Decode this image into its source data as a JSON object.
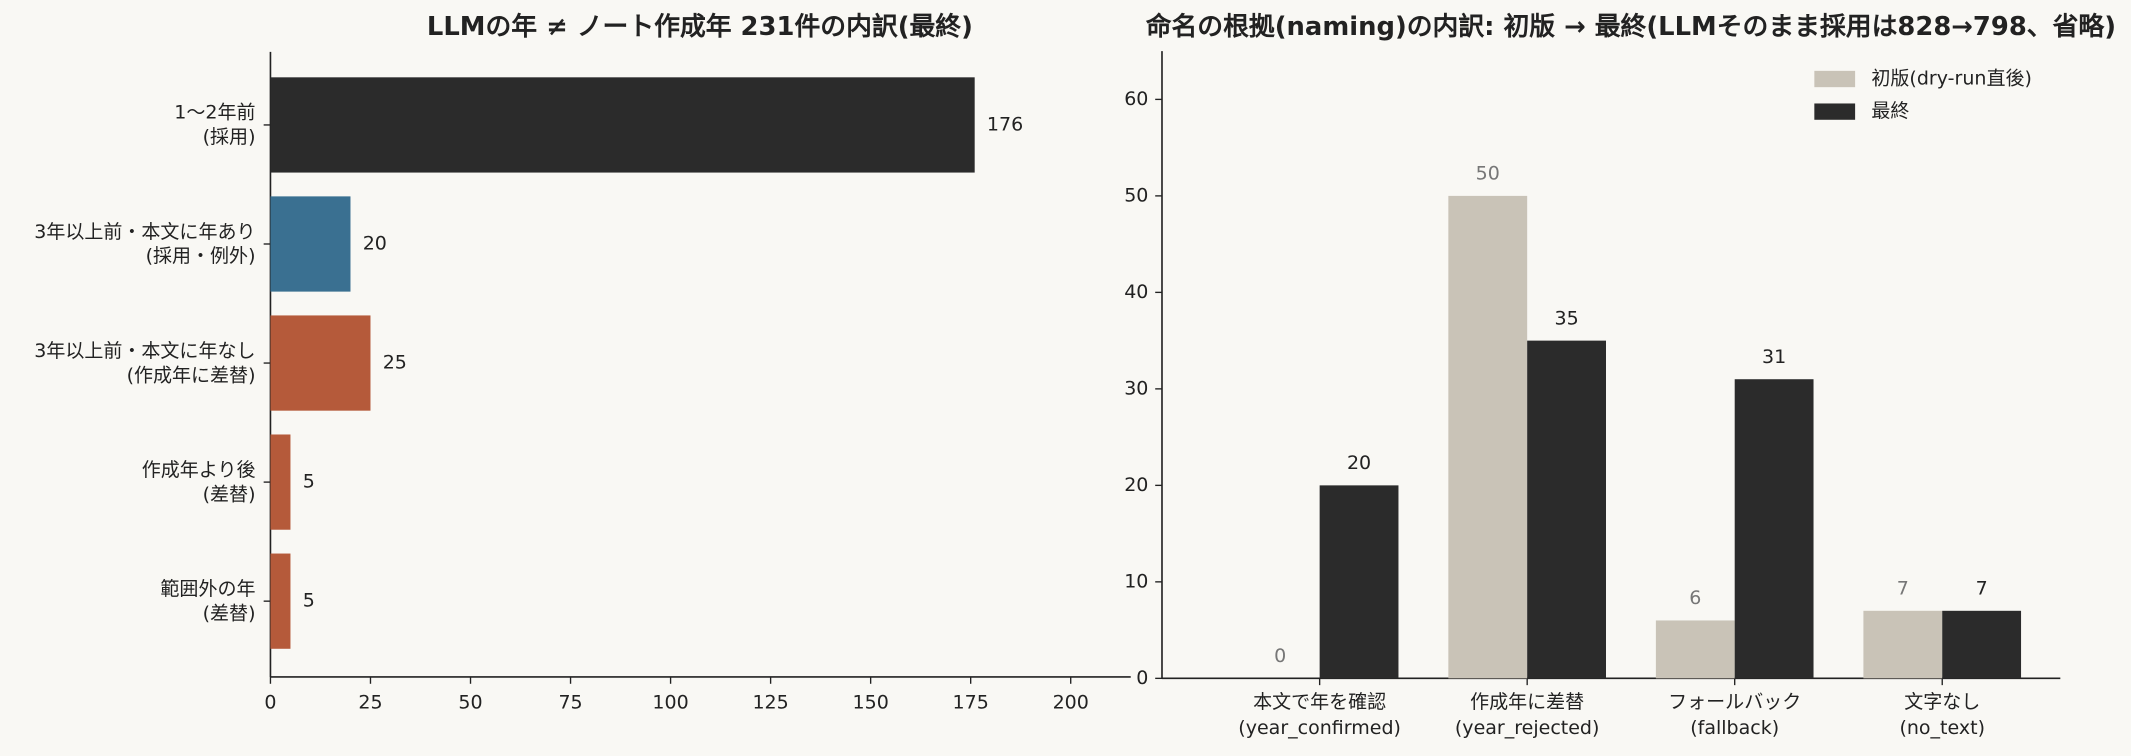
{
  "chart_data": [
    {
      "type": "barh",
      "title": "LLMの年 ≠ ノート作成年 231件の内訳(最終)",
      "categories": [
        "1〜2年前\n(採用)",
        "3年以上前・本文に年あり\n(採用・例外)",
        "3年以上前・本文に年なし\n(作成年に差替)",
        "作成年より後\n(差替)",
        "範囲外の年\n(差替)"
      ],
      "values": [
        176,
        20,
        25,
        5,
        5
      ],
      "colors": [
        "#2b2b2b",
        "#3a7091",
        "#b55a3a",
        "#b55a3a",
        "#b55a3a"
      ],
      "xlim": [
        0,
        215
      ],
      "xticks": [
        0,
        25,
        50,
        75,
        100,
        125,
        150,
        175,
        200
      ]
    },
    {
      "type": "bar",
      "title": "命名の根拠(naming)の内訳: 初版 → 最終(LLMそのまま採用は828→798、省略)",
      "categories": [
        "本文で年を確認\n(year_confirmed)",
        "作成年に差替\n(year_rejected)",
        "フォールバック\n(fallback)",
        "文字なし\n(no_text)"
      ],
      "series": [
        {
          "name": "初版(dry-run直後)",
          "color": "#c9c3b7",
          "values": [
            0,
            50,
            6,
            7
          ]
        },
        {
          "name": "最終",
          "color": "#2b2b2b",
          "values": [
            20,
            35,
            31,
            7
          ]
        }
      ],
      "ylim": [
        0,
        65
      ],
      "yticks": [
        0,
        10,
        20,
        30,
        40,
        50,
        60
      ],
      "legend": "upper right"
    }
  ]
}
